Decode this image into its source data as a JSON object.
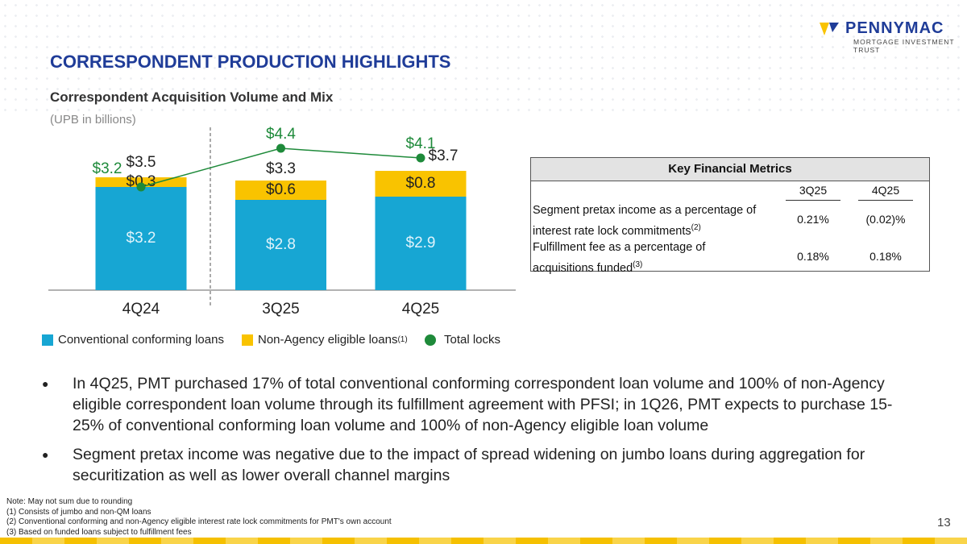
{
  "logo": {
    "name": "PENNYMAC",
    "tagline": "MORTGAGE INVESTMENT TRUST"
  },
  "title": "CORRESPONDENT PRODUCTION HIGHLIGHTS",
  "chart_data": {
    "type": "bar",
    "title": "Correspondent Acquisition Volume and Mix",
    "subtitle": "(UPB in billions)",
    "categories": [
      "4Q24",
      "3Q25",
      "4Q25"
    ],
    "series": [
      {
        "name": "Conventional conforming loans",
        "color": "#17a6d3",
        "values": [
          3.2,
          2.8,
          2.9
        ],
        "value_labels": [
          "$3.2",
          "$2.8",
          "$2.9"
        ]
      },
      {
        "name": "Non-Agency eligible loans",
        "name_note": "(1)",
        "color": "#f9c300",
        "values": [
          0.3,
          0.6,
          0.8
        ],
        "value_labels": [
          "$0.3",
          "$0.6",
          "$0.8"
        ]
      },
      {
        "name": "Total locks",
        "type": "line",
        "color": "#1e8a3a",
        "values": [
          3.2,
          4.4,
          4.1
        ],
        "value_labels": [
          "$3.2",
          "$4.4",
          "$4.1"
        ]
      }
    ],
    "totals": [
      3.5,
      3.3,
      3.7
    ],
    "total_labels": [
      "$3.5",
      "$3.3",
      "$3.7"
    ]
  },
  "table": {
    "title": "Key Financial Metrics",
    "columns": [
      "3Q25",
      "4Q25"
    ],
    "rows": [
      {
        "label": "Segment pretax income as a percentage of interest rate lock commitments",
        "note": "(2)",
        "values": [
          "0.21%",
          "(0.02)%"
        ]
      },
      {
        "label": "Fulfillment fee as a percentage of acquisitions funded",
        "note": "(3)",
        "values": [
          "0.18%",
          "0.18%"
        ]
      }
    ]
  },
  "bullets": [
    "In 4Q25, PMT purchased 17% of total conventional conforming correspondent loan volume and 100% of non-Agency eligible correspondent loan volume through its fulfillment agreement with PFSI; in 1Q26, PMT expects to purchase 15-25% of conventional conforming loan volume and 100% of non-Agency eligible loan volume",
    "Segment pretax income was negative due to the impact of spread widening on jumbo loans during aggregation for securitization as well as lower overall channel margins"
  ],
  "footnotes": [
    "Note: May not sum due to rounding",
    "(1) Consists of jumbo and non-QM loans",
    "(2) Conventional conforming and non-Agency eligible interest rate lock commitments for PMT's own account",
    "(3) Based on funded loans subject to fulfillment fees"
  ],
  "page_number": "13"
}
